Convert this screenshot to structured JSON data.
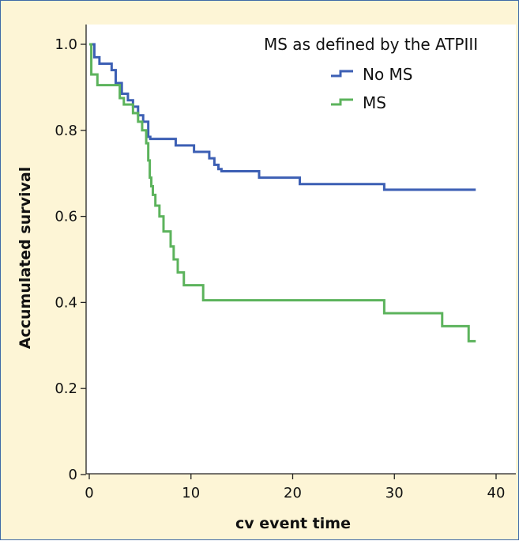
{
  "chart_data": {
    "type": "line",
    "step": true,
    "xlabel": "cv event time",
    "ylabel": "Accumulated survival",
    "xlim": [
      0,
      40
    ],
    "ylim": [
      0,
      1.0
    ],
    "xticks": [
      0,
      10,
      20,
      30,
      40
    ],
    "yticks": [
      0,
      0.2,
      0.4,
      0.6,
      0.8,
      1.0
    ],
    "xtick_labels": [
      "0",
      "10",
      "20",
      "30",
      "40"
    ],
    "ytick_labels": [
      "0",
      "0.2",
      "0.4",
      "0.6",
      "0.8",
      "1.0"
    ],
    "grid": false,
    "legend": {
      "title": "MS as defined by the ATPIII",
      "placement": "top-right"
    },
    "series": [
      {
        "name": "No MS",
        "color": "#3c5fb4",
        "x": [
          0,
          0.5,
          1.0,
          2.2,
          2.6,
          3.2,
          3.8,
          4.3,
          4.8,
          5.3,
          5.8,
          6.0,
          8.5,
          10.3,
          11.8,
          12.3,
          12.7,
          13.0,
          16.7,
          20.7,
          29.0,
          38.0
        ],
        "y": [
          1.0,
          0.97,
          0.955,
          0.94,
          0.91,
          0.885,
          0.87,
          0.855,
          0.835,
          0.82,
          0.785,
          0.78,
          0.765,
          0.75,
          0.735,
          0.72,
          0.71,
          0.705,
          0.69,
          0.675,
          0.662,
          0.662
        ]
      },
      {
        "name": "MS",
        "color": "#5cb35c",
        "x": [
          0,
          0.2,
          0.8,
          3.0,
          3.4,
          4.3,
          4.8,
          5.2,
          5.6,
          5.8,
          5.95,
          6.1,
          6.25,
          6.5,
          6.9,
          7.3,
          8.0,
          8.3,
          8.7,
          9.3,
          9.9,
          11.2,
          29.0,
          34.7,
          37.3,
          38.0
        ],
        "y": [
          1.0,
          0.93,
          0.905,
          0.875,
          0.86,
          0.84,
          0.82,
          0.8,
          0.77,
          0.73,
          0.69,
          0.67,
          0.65,
          0.625,
          0.6,
          0.565,
          0.53,
          0.5,
          0.47,
          0.44,
          0.44,
          0.405,
          0.375,
          0.345,
          0.31,
          0.31
        ]
      }
    ]
  }
}
